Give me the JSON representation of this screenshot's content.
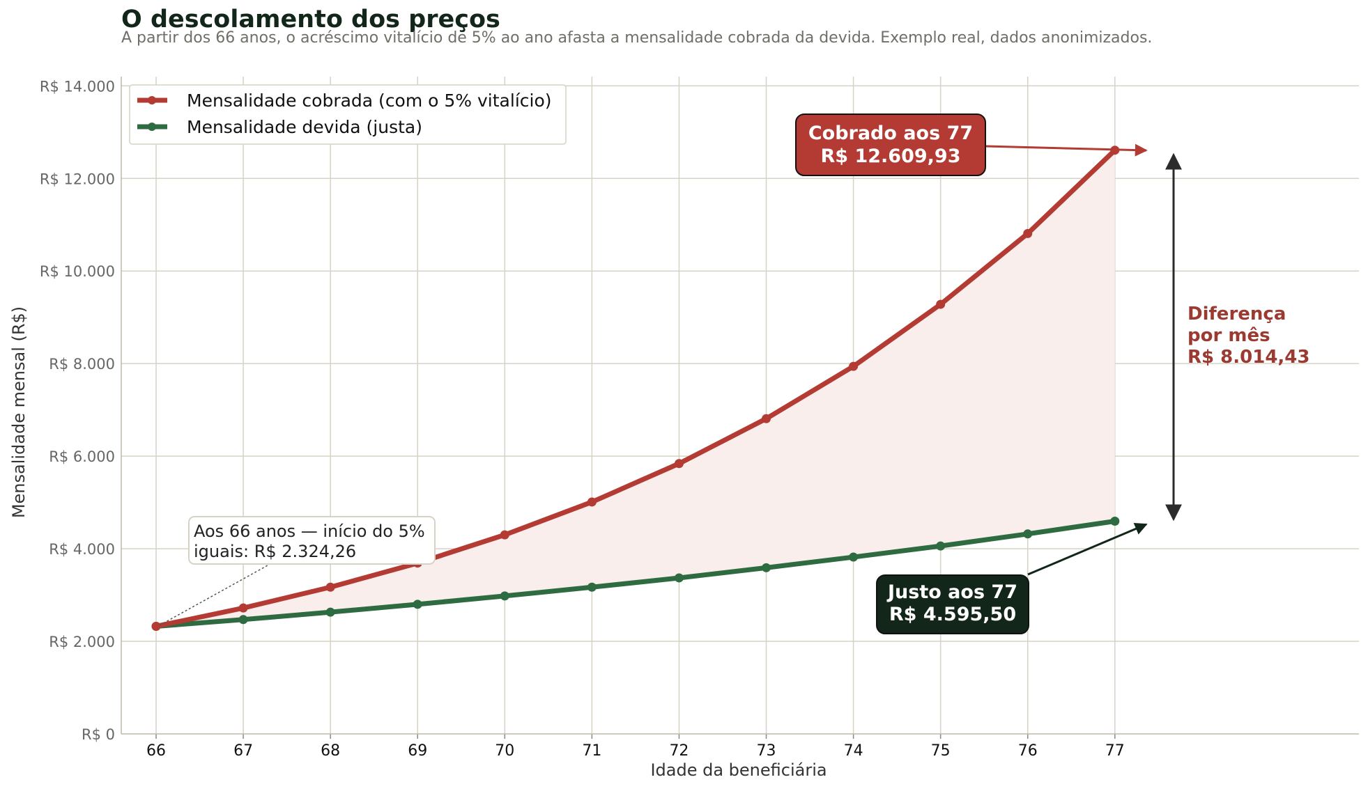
{
  "colors": {
    "charged": "#b33b33",
    "fair": "#2e6b40",
    "grid": "#d6d2c4",
    "dark": "#13261a",
    "fill": "#f9eeec"
  },
  "chart_data": {
    "type": "line",
    "title": "O descolamento dos preços",
    "subtitle": "A partir dos 66 anos, o acréscimo vitalício de 5% ao ano afasta a mensalidade cobrada da devida. Exemplo real, dados anonimizados.",
    "xlabel": "Idade da beneficiária",
    "ylabel": "Mensalidade mensal (R$)",
    "x": [
      66,
      67,
      68,
      69,
      70,
      71,
      72,
      73,
      74,
      75,
      76,
      77
    ],
    "xlim": [
      65.6,
      79.8
    ],
    "ylim": [
      0,
      14200
    ],
    "yticks": [
      0,
      2000,
      4000,
      6000,
      8000,
      10000,
      12000,
      14000
    ],
    "ytick_labels": [
      "R$ 0",
      "R$ 2.000",
      "R$ 4.000",
      "R$ 6.000",
      "R$ 8.000",
      "R$ 10.000",
      "R$ 12.000",
      "R$ 14.000"
    ],
    "grid": true,
    "legend_position": "top-left",
    "series": [
      {
        "name": "Mensalidade cobrada (com o 5% vitalício)",
        "values": [
          2324.26,
          2720,
          3170,
          3690,
          4300,
          5010,
          5840,
          6810,
          7940,
          9280,
          10810,
          12609.93
        ]
      },
      {
        "name": "Mensalidade devida (justa)",
        "values": [
          2324.26,
          2470,
          2630,
          2800,
          2980,
          3170,
          3370,
          3590,
          3820,
          4060,
          4320,
          4595.5
        ]
      }
    ],
    "annotations": {
      "start": {
        "line1": "Aos 66 anos — início do 5%",
        "line2": "iguais: R$ 2.324,26"
      },
      "charged_end": {
        "line1": "Cobrado aos 77",
        "line2": "R$ 12.609,93"
      },
      "fair_end": {
        "line1": "Justo aos 77",
        "line2": "R$ 4.595,50"
      },
      "difference": {
        "line1": "Diferença",
        "line2": "por mês",
        "line3": "R$ 8.014,43"
      }
    }
  }
}
